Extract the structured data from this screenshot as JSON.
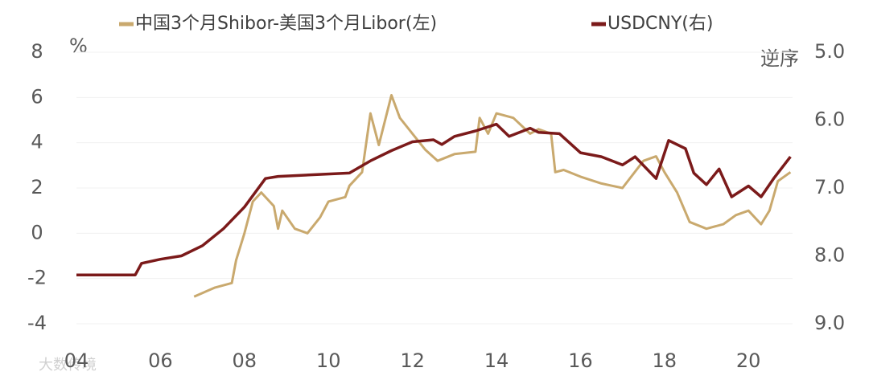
{
  "chart_data": {
    "type": "line",
    "axis_label_left": "%",
    "axis_label_right": "逆序",
    "watermark": "大数传境",
    "grid": true,
    "legend_position": "top",
    "y2_reversed": true,
    "xlim": [
      4,
      21.05
    ],
    "xticks": [
      {
        "value": 4,
        "label": "04"
      },
      {
        "value": 6,
        "label": "06"
      },
      {
        "value": 8,
        "label": "08"
      },
      10,
      12,
      14,
      16,
      18,
      20
    ],
    "ylim": [
      -4,
      8
    ],
    "yticks": [
      -4,
      -2,
      0,
      2,
      4,
      6,
      8
    ],
    "y2lim": [
      5,
      9
    ],
    "y2ticks": [
      {
        "value": 5,
        "label": "5.0"
      },
      {
        "value": 6,
        "label": "6.0"
      },
      {
        "value": 7,
        "label": "7.0"
      },
      {
        "value": 8,
        "label": "8.0"
      },
      {
        "value": 9,
        "label": "9.0"
      }
    ],
    "series": [
      {
        "name": "中国3个月Shibor-美国3个月Libor(左)",
        "color": "#c9a96e",
        "x": [
          6.8,
          7.3,
          7.7,
          7.8,
          8.0,
          8.2,
          8.4,
          8.7,
          8.8,
          8.9,
          9.2,
          9.5,
          9.8,
          10.0,
          10.4,
          10.5,
          10.8,
          11.0,
          11.2,
          11.5,
          11.7,
          12.0,
          12.3,
          12.6,
          13.0,
          13.5,
          13.6,
          13.8,
          14.0,
          14.4,
          14.8,
          15.0,
          15.3,
          15.4,
          15.6,
          16.0,
          16.5,
          17.0,
          17.5,
          17.8,
          18.0,
          18.3,
          18.6,
          19.0,
          19.4,
          19.7,
          20.0,
          20.3,
          20.5,
          20.7,
          21.0
        ],
        "values": [
          -2.8,
          -2.4,
          -2.2,
          -1.2,
          0,
          1.4,
          1.8,
          1.2,
          0.2,
          1.0,
          0.2,
          0,
          0.7,
          1.4,
          1.6,
          2.1,
          2.7,
          5.3,
          3.9,
          6.1,
          5.1,
          4.4,
          3.7,
          3.2,
          3.5,
          3.6,
          5.1,
          4.4,
          5.3,
          5.1,
          4.4,
          4.6,
          4.4,
          2.7,
          2.8,
          2.5,
          2.2,
          2.0,
          3.2,
          3.4,
          2.7,
          1.8,
          0.5,
          0.2,
          0.4,
          0.8,
          1.0,
          0.4,
          1.0,
          2.3,
          2.7
        ]
      },
      {
        "name": "USDCNY(右)",
        "color": "#7b1a1a",
        "axis": "y2",
        "x": [
          4.0,
          5.4,
          5.55,
          6.0,
          6.5,
          7.0,
          7.5,
          8.0,
          8.5,
          8.8,
          10.5,
          11.0,
          11.5,
          12.0,
          12.5,
          12.7,
          13.0,
          13.5,
          14.0,
          14.3,
          14.8,
          15.0,
          15.5,
          16.0,
          16.5,
          17.0,
          17.3,
          17.8,
          18.1,
          18.5,
          18.7,
          19.0,
          19.3,
          19.6,
          20.0,
          20.3,
          20.6,
          21.0
        ],
        "values": [
          8.28,
          8.28,
          8.11,
          8.05,
          8.0,
          7.85,
          7.6,
          7.28,
          6.86,
          6.83,
          6.78,
          6.6,
          6.45,
          6.32,
          6.29,
          6.36,
          6.24,
          6.16,
          6.06,
          6.24,
          6.12,
          6.18,
          6.2,
          6.48,
          6.54,
          6.66,
          6.54,
          6.86,
          6.3,
          6.42,
          6.78,
          6.95,
          6.72,
          7.13,
          6.97,
          7.13,
          6.86,
          6.54
        ]
      }
    ]
  }
}
